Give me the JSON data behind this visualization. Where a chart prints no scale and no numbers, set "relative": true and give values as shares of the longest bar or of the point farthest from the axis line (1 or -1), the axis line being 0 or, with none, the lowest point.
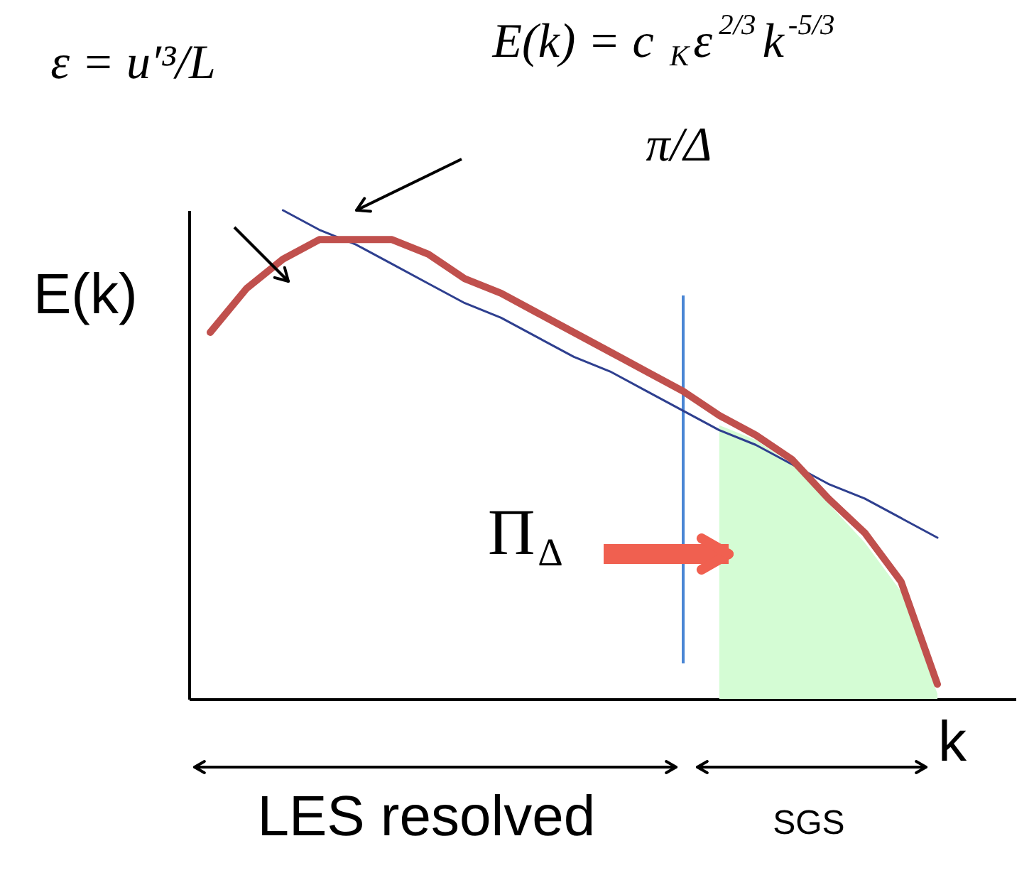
{
  "chart_data": {
    "type": "line",
    "relative": true,
    "xlabel": "k",
    "ylabel": "E(k)",
    "grid": false,
    "tick_labels": false,
    "categories": [
      null,
      null,
      null,
      null,
      null,
      null,
      null,
      null,
      null,
      null,
      null,
      null,
      null,
      null,
      null,
      null,
      null,
      null,
      null,
      null,
      null
    ],
    "series": [
      {
        "type": "area",
        "color": "#d4fcd4",
        "values": [
          null,
          null,
          null,
          null,
          null,
          null,
          null,
          null,
          null,
          null,
          null,
          null,
          null,
          null,
          0.56,
          0.53,
          0.48,
          0.4,
          0.32,
          0.22,
          0.01
        ]
      },
      {
        "color": "#2e3f8f",
        "values": [
          null,
          null,
          1,
          0.96,
          0.93,
          0.89,
          0.85,
          0.81,
          0.78,
          0.74,
          0.7,
          0.67,
          0.63,
          0.59,
          0.55,
          0.52,
          0.48,
          0.44,
          0.41,
          0.37,
          0.33
        ]
      },
      {
        "color": "#c0504d",
        "values": [
          0.75,
          0.84,
          0.9,
          0.94,
          0.94,
          0.94,
          0.91,
          0.86,
          0.83,
          0.79,
          0.75,
          0.71,
          0.67,
          0.63,
          0.58,
          0.54,
          0.49,
          0.41,
          0.34,
          0.24,
          0.03
        ]
      }
    ],
    "annotations": [
      "ε = u′³/L",
      "E(k) = c$_{K}$ε$^{2/3}$k$^{-5/3}$",
      "π/Δ",
      "Π$_{Δ}$",
      "LES resolved",
      "SGS"
    ]
  }
}
